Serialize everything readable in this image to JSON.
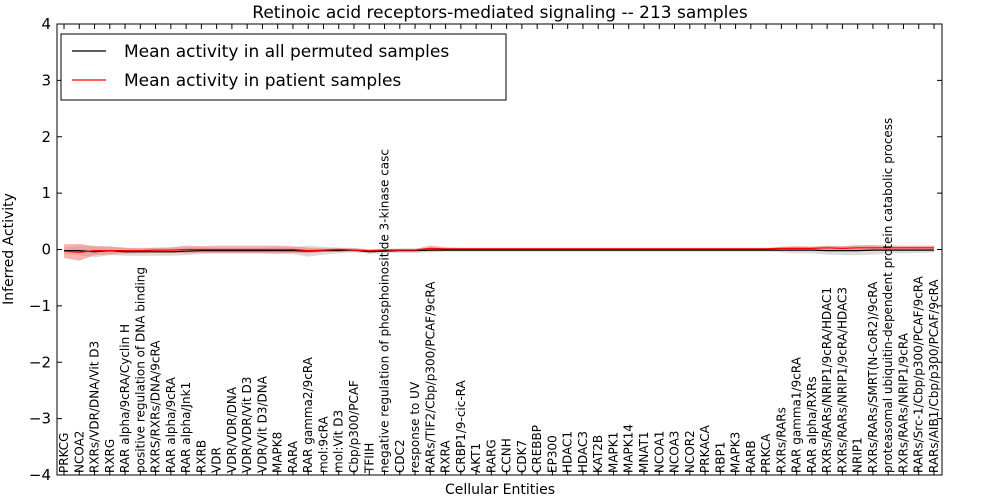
{
  "chart_data": {
    "type": "line",
    "title": "Retinoic acid receptors-mediated signaling -- 213 samples",
    "xlabel": "Cellular Entities",
    "ylabel": "Inferred Activity",
    "ylim": [
      -4,
      4
    ],
    "yticks": [
      -4,
      -3,
      -2,
      -1,
      0,
      1,
      2,
      3,
      4
    ],
    "ytick_labels": [
      "−4",
      "−3",
      "−2",
      "−1",
      "0",
      "1",
      "2",
      "3",
      "4"
    ],
    "legend_position": "top-left",
    "categories": [
      "PRKCG",
      "NCOA2",
      "RXRs/VDR/DNA/Vit D3",
      "RXRG",
      "RAR alpha/9cRA/Cyclin H",
      "positive regulation of DNA binding",
      "RXRS/RXRs/DNA/9cRA",
      "RAR alpha/9cRA",
      "RAR alpha/Jnk1",
      "RXRB",
      "VDR",
      "VDR/VDR/DNA",
      "VDR/VDR/Vit D3",
      "VDR/Vit D3/DNA",
      "MAPK8",
      "RARA",
      "RAR gamma2/9cRA",
      "mol:9cRA",
      "mol:Vit D3",
      "Cbp/p300/PCAF",
      "TFIIH",
      "negative regulation of phosphoinositide 3-kinase casc",
      "CDC2",
      "response to UV",
      "RARs/TIF2/Cbp/p300/PCAF/9cRA",
      "RXRA",
      "CRBP1/9-cic-RA",
      "AKT1",
      "RARG",
      "CCNH",
      "CDK7",
      "CREBBP",
      "EP300",
      "HDAC1",
      "HDAC3",
      "KAT2B",
      "MAPK1",
      "MAPK14",
      "MNAT1",
      "NCOA1",
      "NCOA3",
      "NCOR2",
      "PRKACA",
      "RBP1",
      "MAPK3",
      "RARB",
      "PRKCA",
      "RXRs/RARs",
      "RAR gamma1/9cRA",
      "RAR alpha/RXRs",
      "RXRs/RARs/NRIP1/9cRA/HDAC1",
      "RXRs/RARs/NRIP1/9cRA/HDAC3",
      "NRIP1",
      "RXRs/RARs/SMRT(N-CoR2)/9cRA",
      "proteasomal ubiquitin-dependent protein catabolic process",
      "RXRs/RARs/NRIP1/9cRA",
      "RARs/Src-1/Cbp/p300/PCAF/9cRA",
      "RARs/AIB1/Cbp/p300/PCAF/9cRA"
    ],
    "series": [
      {
        "name": "Mean activity in all permuted samples",
        "color": "#000000",
        "band_color": "#b0b0b0",
        "values": [
          -0.02,
          -0.02,
          -0.04,
          -0.02,
          -0.04,
          -0.04,
          -0.04,
          -0.04,
          -0.03,
          -0.02,
          -0.02,
          -0.02,
          -0.02,
          -0.02,
          -0.02,
          -0.02,
          -0.03,
          -0.02,
          -0.02,
          -0.01,
          -0.04,
          -0.03,
          -0.02,
          -0.02,
          -0.01,
          -0.01,
          -0.01,
          -0.01,
          -0.01,
          -0.01,
          -0.01,
          -0.01,
          -0.01,
          -0.01,
          -0.01,
          -0.01,
          -0.01,
          -0.01,
          -0.01,
          -0.01,
          -0.01,
          -0.01,
          -0.01,
          -0.01,
          -0.01,
          -0.01,
          -0.01,
          -0.01,
          -0.01,
          -0.01,
          -0.02,
          -0.02,
          -0.02,
          -0.01,
          -0.01,
          -0.01,
          -0.01,
          -0.01
        ],
        "band_half_width": [
          0.06,
          0.08,
          0.1,
          0.08,
          0.07,
          0.07,
          0.07,
          0.07,
          0.07,
          0.06,
          0.05,
          0.05,
          0.05,
          0.05,
          0.06,
          0.06,
          0.1,
          0.07,
          0.05,
          0.04,
          0.04,
          0.04,
          0.04,
          0.04,
          0.04,
          0.03,
          0.03,
          0.03,
          0.03,
          0.03,
          0.03,
          0.03,
          0.03,
          0.03,
          0.03,
          0.03,
          0.03,
          0.03,
          0.03,
          0.03,
          0.03,
          0.03,
          0.03,
          0.03,
          0.03,
          0.03,
          0.03,
          0.04,
          0.06,
          0.06,
          0.07,
          0.08,
          0.08,
          0.08,
          0.06,
          0.06,
          0.05,
          0.05
        ]
      },
      {
        "name": "Mean activity in patient samples",
        "color": "#ff0000",
        "band_color": "#f08080",
        "values": [
          -0.03,
          -0.05,
          -0.02,
          -0.02,
          -0.02,
          -0.02,
          -0.01,
          -0.01,
          0.0,
          0.0,
          0.0,
          0.0,
          0.0,
          0.0,
          0.0,
          0.0,
          -0.02,
          -0.01,
          0.0,
          -0.01,
          -0.02,
          -0.01,
          -0.01,
          -0.01,
          0.02,
          0.01,
          0.01,
          0.01,
          0.01,
          0.01,
          0.01,
          0.01,
          0.01,
          0.01,
          0.01,
          0.01,
          0.01,
          0.01,
          0.01,
          0.01,
          0.01,
          0.01,
          0.01,
          0.01,
          0.01,
          0.01,
          0.01,
          0.02,
          0.02,
          0.02,
          0.03,
          0.02,
          0.03,
          0.03,
          0.03,
          0.03,
          0.03,
          0.03
        ],
        "band_half_width": [
          0.12,
          0.15,
          0.08,
          0.07,
          0.05,
          0.04,
          0.04,
          0.05,
          0.07,
          0.06,
          0.07,
          0.07,
          0.07,
          0.07,
          0.07,
          0.06,
          0.05,
          0.03,
          0.03,
          0.03,
          0.02,
          0.02,
          0.02,
          0.02,
          0.05,
          0.03,
          0.02,
          0.02,
          0.02,
          0.02,
          0.02,
          0.02,
          0.02,
          0.02,
          0.02,
          0.02,
          0.02,
          0.02,
          0.02,
          0.02,
          0.02,
          0.02,
          0.02,
          0.02,
          0.02,
          0.02,
          0.02,
          0.03,
          0.04,
          0.03,
          0.04,
          0.04,
          0.05,
          0.05,
          0.04,
          0.04,
          0.04,
          0.04
        ]
      }
    ]
  }
}
